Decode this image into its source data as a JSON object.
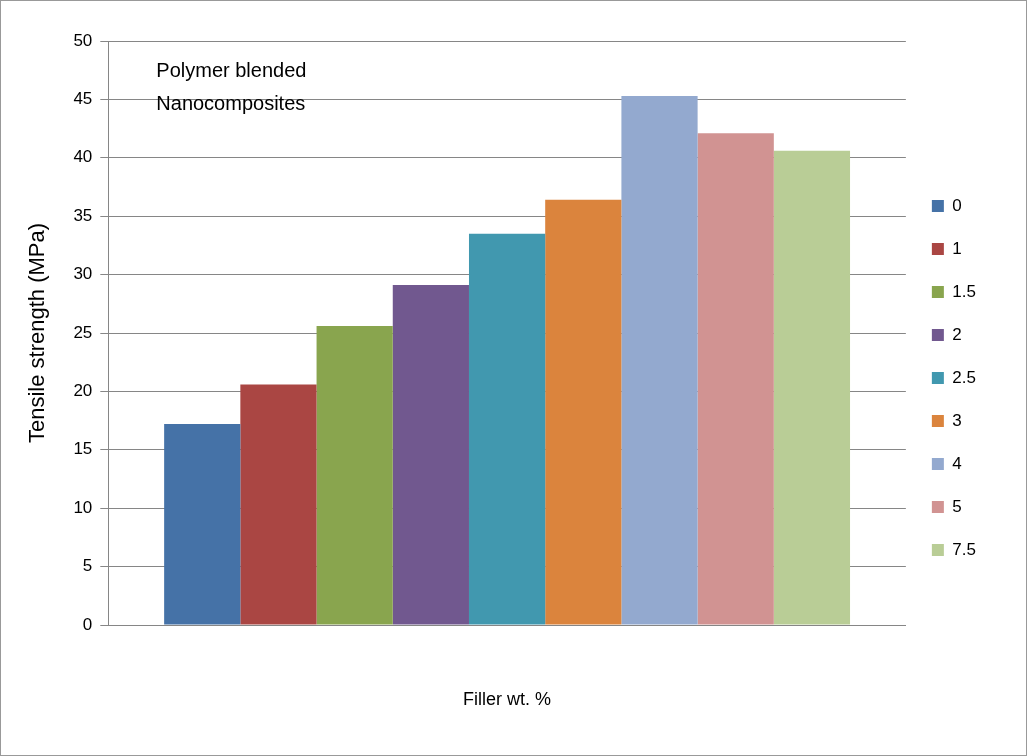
{
  "chart_data": {
    "type": "bar",
    "xlabel": "Filler wt. %",
    "ylabel": "Tensile strength (MPa)",
    "categories": [
      null
    ],
    "series": [
      {
        "name": "0",
        "color": "#4572a7",
        "values": [
          17.2
        ]
      },
      {
        "name": "1",
        "color": "#aa4643",
        "values": [
          20.6
        ]
      },
      {
        "name": "1.5",
        "color": "#89a54e",
        "values": [
          25.6
        ]
      },
      {
        "name": "2",
        "color": "#71588f",
        "values": [
          29.1
        ]
      },
      {
        "name": "2.5",
        "color": "#4198af",
        "values": [
          33.5
        ]
      },
      {
        "name": "3",
        "color": "#db843d",
        "values": [
          36.4
        ]
      },
      {
        "name": "4",
        "color": "#93a9cf",
        "values": [
          45.3
        ]
      },
      {
        "name": "5",
        "color": "#d19392",
        "values": [
          42.1
        ]
      },
      {
        "name": "7.5",
        "color": "#b9cd96",
        "values": [
          40.6
        ]
      }
    ],
    "ylim": [
      0,
      50
    ],
    "yticks": [
      0,
      5,
      10,
      15,
      20,
      25,
      30,
      35,
      40,
      45,
      50
    ],
    "grid": "y",
    "legend": "right",
    "annotations": [
      "Polymer blended\nNanocomposites"
    ]
  }
}
